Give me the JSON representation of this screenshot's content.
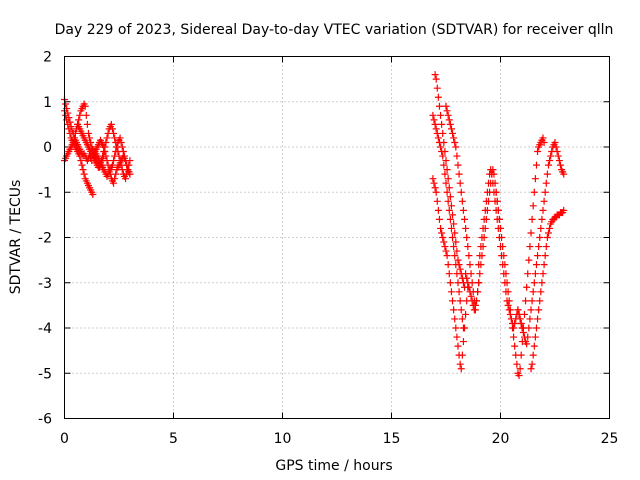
{
  "chart_data": {
    "type": "scatter",
    "title": "Day 229 of 2023, Sidereal Day-to-day VTEC variation (SDTVAR) for receiver qlln",
    "xlabel": "GPS time / hours",
    "ylabel": "SDTVAR / TECUs",
    "xlim": [
      0,
      25
    ],
    "ylim": [
      -6,
      2
    ],
    "xticks": [
      0,
      5,
      10,
      15,
      20,
      25
    ],
    "yticks": [
      -6,
      -5,
      -4,
      -3,
      -2,
      -1,
      0,
      1,
      2
    ],
    "xtick_labels": [
      "0",
      "5",
      "10",
      "15",
      "20",
      "25"
    ],
    "ytick_labels": [
      "-6",
      "-5",
      "-4",
      "-3",
      "-2",
      "-1",
      "0",
      "1",
      "2"
    ],
    "grid": true,
    "marker": "+",
    "color": "#ff0000",
    "series": [
      {
        "name": "SDTVAR",
        "x": [
          0.0,
          0.05,
          0.1,
          0.15,
          0.2,
          0.25,
          0.3,
          0.35,
          0.4,
          0.45,
          0.5,
          0.55,
          0.6,
          0.65,
          0.7,
          0.75,
          0.8,
          0.85,
          0.9,
          0.95,
          1.0,
          1.05,
          1.1,
          1.15,
          1.2,
          1.25,
          1.3,
          1.35,
          1.4,
          1.45,
          1.5,
          1.55,
          1.6,
          1.65,
          1.7,
          1.75,
          1.8,
          1.85,
          1.9,
          1.95,
          2.0,
          2.05,
          2.1,
          2.15,
          2.2,
          2.25,
          2.3,
          2.35,
          2.4,
          2.45,
          2.5,
          2.55,
          2.6,
          2.65,
          2.7,
          2.75,
          2.8,
          2.85,
          2.9,
          2.95,
          3.0,
          0.0,
          0.05,
          0.1,
          0.15,
          0.2,
          0.25,
          0.3,
          0.35,
          0.4,
          0.45,
          0.5,
          0.55,
          0.6,
          0.65,
          0.7,
          0.75,
          0.8,
          0.85,
          0.9,
          0.95,
          1.0,
          1.05,
          1.1,
          1.15,
          1.2,
          1.25,
          1.3,
          1.35,
          1.4,
          1.45,
          1.5,
          1.55,
          1.6,
          1.65,
          1.7,
          1.75,
          1.8,
          1.85,
          1.9,
          1.95,
          2.0,
          2.05,
          2.1,
          2.15,
          2.2,
          2.25,
          2.3,
          2.35,
          2.4,
          2.45,
          2.5,
          2.55,
          2.6,
          2.65,
          2.7,
          2.75,
          2.8,
          2.85,
          2.9,
          2.95,
          3.0,
          0.0,
          0.05,
          0.1,
          0.15,
          0.2,
          0.25,
          0.3,
          0.35,
          0.4,
          0.45,
          0.5,
          0.55,
          0.6,
          0.65,
          0.7,
          0.75,
          0.8,
          0.85,
          0.9,
          0.95,
          1.0,
          1.05,
          1.1,
          1.15,
          1.2,
          1.25,
          1.3,
          0.6,
          0.65,
          0.7,
          0.75,
          0.8,
          0.85,
          0.9,
          0.95,
          1.0,
          1.05,
          1.1,
          1.15,
          1.2,
          1.25,
          1.3,
          1.35,
          1.4,
          1.45,
          1.5,
          1.55,
          1.6,
          1.65,
          1.7,
          1.75,
          1.8,
          1.4,
          1.45,
          1.5,
          1.55,
          1.6,
          1.65,
          1.7,
          1.75,
          1.8,
          1.85,
          1.9,
          1.95,
          2.0,
          2.05,
          2.1,
          2.15,
          2.2,
          2.25,
          2.3,
          2.35,
          2.4,
          2.45,
          2.5,
          2.55,
          2.6,
          2.65,
          2.7,
          2.75,
          2.8,
          2.85,
          2.9,
          2.95,
          3.0,
          16.9,
          16.95,
          17.0,
          17.05,
          17.1,
          17.15,
          17.2,
          17.25,
          17.3,
          17.35,
          17.4,
          17.45,
          17.5,
          17.55,
          17.6,
          17.65,
          17.7,
          17.75,
          17.8,
          17.85,
          17.9,
          17.95,
          18.0,
          18.05,
          18.1,
          18.15,
          18.2,
          18.25,
          18.3,
          16.9,
          16.95,
          17.0,
          17.05,
          17.1,
          17.15,
          17.2,
          17.25,
          17.3,
          17.35,
          17.4,
          17.45,
          17.5,
          17.55,
          17.6,
          17.65,
          17.7,
          17.75,
          17.8,
          17.85,
          17.9,
          17.95,
          18.0,
          18.05,
          18.1,
          18.15,
          18.2,
          18.25,
          18.3,
          18.35,
          18.4,
          18.45,
          18.5,
          17.0,
          17.05,
          17.1,
          17.15,
          17.2,
          17.25,
          17.3,
          17.35,
          17.4,
          17.45,
          17.5,
          17.55,
          17.6,
          17.65,
          17.7,
          17.75,
          17.8,
          17.85,
          17.9,
          17.95,
          18.0,
          18.05,
          18.1,
          18.15,
          18.2,
          18.25,
          18.3,
          18.35,
          17.5,
          17.55,
          17.6,
          17.65,
          17.7,
          17.75,
          17.8,
          17.85,
          17.9,
          17.95,
          18.0,
          18.05,
          18.1,
          18.15,
          18.2,
          18.25,
          18.3,
          18.35,
          18.4,
          18.45,
          18.5,
          18.55,
          18.6,
          18.65,
          18.7,
          18.75,
          18.8,
          18.85,
          18.9,
          18.95,
          19.0,
          18.4,
          18.45,
          18.5,
          18.55,
          18.6,
          18.65,
          18.7,
          18.75,
          18.8,
          18.85,
          18.9,
          18.95,
          19.0,
          19.05,
          19.1,
          19.15,
          19.2,
          19.25,
          19.3,
          19.35,
          19.4,
          19.45,
          19.5,
          19.55,
          19.6,
          19.65,
          19.7,
          19.75,
          19.8,
          19.85,
          19.9,
          19.95,
          20.0,
          19.0,
          19.05,
          19.1,
          19.15,
          19.2,
          19.25,
          19.3,
          19.35,
          19.4,
          19.45,
          19.5,
          19.55,
          19.6,
          19.65,
          19.7,
          19.75,
          19.8,
          19.85,
          19.9,
          19.95,
          20.0,
          20.05,
          20.1,
          20.15,
          20.2,
          20.25,
          20.3,
          20.35,
          20.4,
          20.45,
          20.5,
          20.55,
          20.6,
          20.65,
          20.7,
          20.75,
          20.8,
          20.85,
          20.9,
          20.95,
          21.0,
          19.8,
          19.85,
          19.9,
          19.95,
          20.0,
          20.05,
          20.1,
          20.15,
          20.2,
          20.25,
          20.3,
          20.35,
          20.4,
          20.45,
          20.5,
          20.55,
          20.6,
          20.65,
          20.7,
          20.75,
          20.8,
          20.85,
          20.9,
          20.95,
          21.0,
          21.05,
          21.1,
          21.15,
          21.2,
          21.25,
          21.3,
          21.35,
          21.4,
          21.45,
          21.5,
          21.55,
          21.6,
          21.65,
          21.7,
          21.75,
          21.8,
          21.85,
          21.9,
          21.95,
          22.0,
          20.8,
          20.85,
          20.9,
          20.95,
          21.0,
          21.05,
          21.1,
          21.15,
          21.2,
          21.25,
          21.3,
          21.35,
          21.4,
          21.45,
          21.5,
          21.55,
          21.6,
          21.65,
          21.7,
          21.75,
          21.8,
          21.85,
          21.9,
          21.95,
          22.0,
          22.05,
          22.1,
          22.15,
          22.2,
          22.25,
          22.3,
          22.35,
          22.4,
          22.45,
          22.5,
          22.55,
          22.6,
          22.65,
          22.7,
          22.75,
          22.8,
          22.85,
          22.9,
          21.4,
          21.45,
          21.5,
          21.55,
          21.6,
          21.65,
          21.7,
          21.75,
          21.8,
          21.85,
          21.9,
          21.95,
          22.0,
          22.05,
          22.1,
          22.15,
          22.2,
          22.25,
          22.3,
          22.35,
          22.4,
          22.45,
          22.5,
          22.55,
          22.6,
          22.65,
          22.7,
          22.75,
          22.8,
          22.85,
          22.9
        ],
        "y": [
          1.05,
          0.95,
          0.85,
          0.75,
          0.65,
          0.55,
          0.45,
          0.35,
          0.3,
          0.2,
          0.15,
          0.1,
          0.05,
          0.0,
          -0.05,
          -0.1,
          -0.15,
          -0.2,
          -0.15,
          -0.2,
          -0.25,
          -0.3,
          -0.25,
          -0.2,
          -0.25,
          -0.3,
          -0.2,
          -0.15,
          -0.1,
          -0.05,
          0.0,
          0.05,
          0.1,
          0.15,
          0.1,
          0.05,
          0.0,
          -0.1,
          -0.2,
          -0.3,
          -0.4,
          -0.5,
          -0.6,
          -0.7,
          -0.75,
          -0.8,
          -0.7,
          -0.6,
          -0.5,
          -0.45,
          -0.4,
          -0.35,
          -0.3,
          -0.25,
          -0.2,
          -0.25,
          -0.3,
          -0.4,
          -0.5,
          -0.55,
          -0.6,
          -0.3,
          -0.25,
          -0.2,
          -0.15,
          -0.1,
          -0.05,
          0.0,
          0.05,
          0.1,
          0.2,
          0.3,
          0.4,
          0.5,
          0.6,
          0.7,
          0.8,
          0.85,
          0.9,
          0.95,
          0.9,
          0.7,
          0.5,
          0.3,
          0.2,
          0.1,
          0.0,
          -0.05,
          -0.1,
          -0.2,
          -0.3,
          -0.35,
          -0.4,
          -0.45,
          -0.4,
          -0.3,
          -0.2,
          -0.1,
          0.0,
          0.1,
          0.2,
          0.3,
          0.4,
          0.45,
          0.5,
          0.4,
          0.3,
          0.2,
          0.1,
          0.0,
          -0.1,
          -0.2,
          -0.3,
          -0.4,
          -0.5,
          -0.6,
          -0.65,
          -0.7,
          -0.6,
          -0.5,
          -0.4,
          -0.3,
          0.8,
          0.7,
          0.6,
          0.5,
          0.4,
          0.3,
          0.2,
          0.15,
          0.1,
          0.05,
          0.0,
          -0.05,
          -0.1,
          -0.15,
          -0.2,
          -0.3,
          -0.4,
          -0.5,
          -0.6,
          -0.7,
          -0.75,
          -0.8,
          -0.85,
          -0.9,
          -0.95,
          -1.0,
          -1.05,
          0.5,
          0.45,
          0.4,
          0.35,
          0.3,
          0.25,
          0.2,
          0.15,
          0.1,
          0.05,
          0.0,
          -0.05,
          -0.1,
          -0.15,
          -0.2,
          -0.25,
          -0.3,
          -0.35,
          -0.4,
          -0.45,
          -0.4,
          -0.35,
          -0.3,
          -0.25,
          -0.2,
          -0.1,
          -0.15,
          -0.2,
          -0.25,
          -0.3,
          -0.35,
          -0.4,
          -0.45,
          -0.5,
          -0.55,
          -0.6,
          -0.65,
          -0.6,
          -0.55,
          -0.5,
          -0.45,
          -0.4,
          -0.3,
          -0.2,
          -0.1,
          0.0,
          0.1,
          0.15,
          0.2,
          0.1,
          0.0,
          -0.1,
          -0.2,
          -0.3,
          -0.4,
          -0.5,
          -0.55,
          -0.6,
          0.7,
          0.6,
          0.5,
          0.4,
          0.3,
          0.2,
          0.1,
          0.0,
          -0.1,
          -0.2,
          -0.4,
          -0.6,
          -0.8,
          -1.0,
          -1.2,
          -1.4,
          -1.6,
          -1.8,
          -2.0,
          -2.2,
          -2.4,
          -2.6,
          -2.8,
          -3.0,
          -3.2,
          -3.4,
          -3.6,
          -3.8,
          -4.0,
          -0.7,
          -0.8,
          -0.9,
          -1.0,
          -1.2,
          -1.4,
          -1.6,
          -1.8,
          -1.9,
          -2.0,
          -2.1,
          -2.2,
          -2.3,
          -2.4,
          -2.6,
          -2.8,
          -3.0,
          -3.2,
          -3.4,
          -3.6,
          -3.8,
          -4.0,
          -4.2,
          -4.4,
          -4.6,
          -4.8,
          -4.9,
          -4.6,
          -4.3,
          -4.0,
          -3.7,
          -3.4,
          -3.1,
          1.6,
          1.5,
          1.3,
          1.1,
          0.9,
          0.7,
          0.5,
          0.3,
          0.1,
          -0.1,
          -0.3,
          -0.5,
          -0.7,
          -0.9,
          -1.1,
          -1.3,
          -1.5,
          -1.7,
          -1.9,
          -2.1,
          -2.3,
          -2.5,
          -2.6,
          -2.7,
          -2.8,
          -2.9,
          -3.0,
          -3.1,
          0.9,
          0.8,
          0.7,
          0.6,
          0.5,
          0.4,
          0.3,
          0.2,
          0.1,
          0.0,
          -0.2,
          -0.4,
          -0.6,
          -0.8,
          -1.0,
          -1.2,
          -1.4,
          -1.6,
          -1.8,
          -2.0,
          -2.2,
          -2.4,
          -2.6,
          -2.8,
          -3.0,
          -3.2,
          -3.4,
          -3.6,
          -3.4,
          -3.2,
          -3.0,
          -2.8,
          -2.9,
          -3.0,
          -3.1,
          -3.2,
          -3.3,
          -3.4,
          -3.5,
          -3.6,
          -3.5,
          -3.4,
          -3.2,
          -3.0,
          -2.8,
          -2.6,
          -2.4,
          -2.2,
          -2.0,
          -1.8,
          -1.6,
          -1.4,
          -1.2,
          -1.0,
          -0.8,
          -0.6,
          -0.5,
          -0.6,
          -0.8,
          -1.0,
          -1.2,
          -1.4,
          -1.6,
          -1.8,
          -2.6,
          -2.4,
          -2.2,
          -2.0,
          -1.8,
          -1.6,
          -1.4,
          -1.2,
          -1.0,
          -0.8,
          -0.6,
          -0.5,
          -0.6,
          -0.8,
          -1.0,
          -1.2,
          -1.4,
          -1.6,
          -1.8,
          -2.0,
          -2.2,
          -2.4,
          -2.6,
          -2.8,
          -3.0,
          -3.2,
          -3.4,
          -3.5,
          -3.6,
          -3.7,
          -3.8,
          -3.9,
          -4.0,
          -3.9,
          -3.8,
          -3.7,
          -3.6,
          -3.7,
          -3.8,
          -3.9,
          -4.0,
          -1.0,
          -1.2,
          -1.4,
          -1.6,
          -1.8,
          -2.0,
          -2.2,
          -2.4,
          -2.6,
          -2.8,
          -3.0,
          -3.2,
          -3.4,
          -3.6,
          -3.8,
          -4.0,
          -4.2,
          -4.4,
          -4.6,
          -4.8,
          -5.0,
          -5.05,
          -4.9,
          -4.6,
          -4.3,
          -4.0,
          -3.7,
          -3.4,
          -3.1,
          -2.8,
          -2.5,
          -2.2,
          -1.9,
          -1.6,
          -1.3,
          -1.0,
          -0.7,
          -0.4,
          -0.1,
          0.0,
          0.05,
          0.1,
          0.15,
          0.2,
          0.1,
          -3.6,
          -3.7,
          -3.8,
          -3.9,
          -4.0,
          -4.1,
          -4.2,
          -4.3,
          -4.35,
          -4.2,
          -4.0,
          -3.8,
          -3.6,
          -3.4,
          -3.2,
          -3.0,
          -2.8,
          -2.6,
          -2.4,
          -2.2,
          -2.0,
          -1.8,
          -1.6,
          -1.4,
          -1.2,
          -1.0,
          -0.8,
          -0.6,
          -0.4,
          -0.3,
          -0.2,
          -0.1,
          0.0,
          0.05,
          0.1,
          0.0,
          -0.1,
          -0.2,
          -0.3,
          -0.4,
          -0.5,
          -0.55,
          -0.6,
          -4.9,
          -4.8,
          -4.6,
          -4.4,
          -4.2,
          -4.0,
          -3.8,
          -3.6,
          -3.4,
          -3.2,
          -3.0,
          -2.8,
          -2.6,
          -2.4,
          -2.2,
          -2.0,
          -1.9,
          -1.8,
          -1.7,
          -1.65,
          -1.6,
          -1.6,
          -1.55,
          -1.55,
          -1.5,
          -1.5,
          -1.5,
          -1.45,
          -1.45,
          -1.45,
          -1.4
        ]
      }
    ]
  }
}
